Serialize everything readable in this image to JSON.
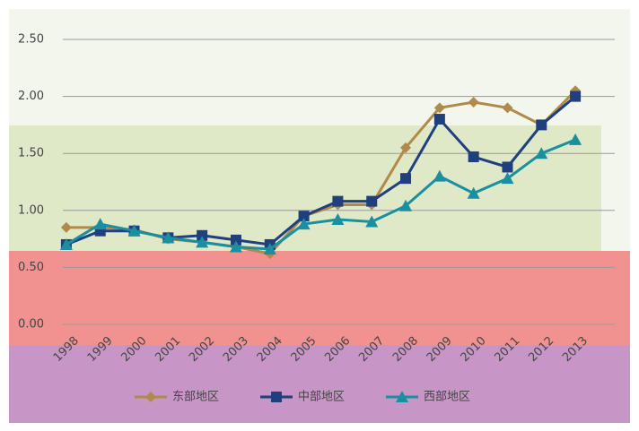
{
  "chart_data": {
    "type": "line",
    "categories": [
      "1998",
      "1999",
      "2000",
      "2001",
      "2002",
      "2003",
      "2004",
      "2005",
      "2006",
      "2007",
      "2008",
      "2009",
      "2010",
      "2011",
      "2012",
      "2013"
    ],
    "series": [
      {
        "name": "东部地区",
        "color": "#b08a4a",
        "marker": "diamond",
        "values": [
          0.85,
          0.85,
          0.83,
          0.75,
          0.72,
          0.68,
          0.62,
          0.95,
          1.05,
          1.05,
          1.55,
          1.9,
          1.95,
          1.9,
          1.75,
          2.05
        ]
      },
      {
        "name": "中部地区",
        "color": "#1f3f7f",
        "marker": "square",
        "values": [
          0.7,
          0.82,
          0.82,
          0.76,
          0.78,
          0.74,
          0.7,
          0.95,
          1.08,
          1.08,
          1.28,
          1.8,
          1.47,
          1.38,
          1.75,
          2.0
        ]
      },
      {
        "name": "西部地区",
        "color": "#1a8fa0",
        "marker": "triangle",
        "values": [
          0.7,
          0.88,
          0.82,
          0.76,
          0.72,
          0.68,
          0.66,
          0.88,
          0.92,
          0.9,
          1.04,
          1.3,
          1.15,
          1.28,
          1.5,
          1.62
        ]
      }
    ],
    "ylim": [
      0,
      2.5
    ],
    "yticks": [
      {
        "value": 0,
        "label": "0.00"
      },
      {
        "value": 0.5,
        "label": "0.50"
      },
      {
        "value": 1,
        "label": "1.00"
      },
      {
        "value": 1.5,
        "label": "1.50"
      },
      {
        "value": 2,
        "label": "2.00"
      },
      {
        "value": 2.5,
        "label": "2.50"
      }
    ],
    "grid": true,
    "legend": "bottom"
  }
}
